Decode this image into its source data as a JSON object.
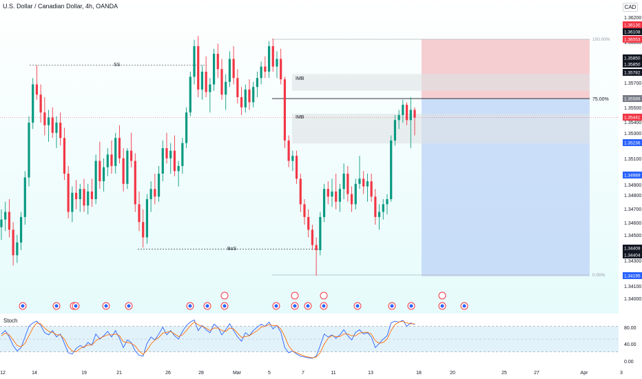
{
  "header": {
    "title": "U.S. Dollar / Canadian Dollar, 4h, OANDA",
    "currency_button": "CAD"
  },
  "colors": {
    "up": "#089981",
    "down": "#f23645",
    "bg_gradient": [
      "#ffffff",
      "#e6fbfb"
    ],
    "stop_zone": "#f2c2c6",
    "target_zone": "#bcd3f7",
    "imb_zone": "#dde3e4",
    "stoch_k": "#2962ff",
    "stoch_d": "#ff6d00"
  },
  "chart_data": [
    {
      "type": "candlestick",
      "title": "U.S. Dollar / Canadian Dollar, 4h, OANDA",
      "ylim": [
        1.3395,
        1.3625
      ],
      "price_scale": [
        "1.36200",
        "1.36000",
        "1.35850",
        "1.35700",
        "1.35500",
        "1.35400",
        "1.35300",
        "1.35100",
        "1.34900",
        "1.34800",
        "1.34700",
        "1.34600",
        "1.34500",
        "1.34300",
        "1.34100",
        "1.34000"
      ],
      "x_ticks": [
        "12",
        "14",
        "19",
        "21",
        "26",
        "28",
        "Mar",
        "5",
        "7",
        "11",
        "13",
        "18",
        "20",
        "25",
        "27",
        "Apr",
        "3"
      ],
      "price_tags": [
        {
          "value": "1.36130",
          "color": "#f23645"
        },
        {
          "value": "1.36108",
          "color": "#131722"
        },
        {
          "value": "1.36053",
          "color": "#f23645"
        },
        {
          "value": "1.35850",
          "color": "#131722"
        },
        {
          "value": "1.35850",
          "color": "#131722"
        },
        {
          "value": "1.35782",
          "color": "#131722"
        },
        {
          "value": "1.35589",
          "color": "#787b86"
        },
        {
          "value": "1.35441",
          "color": "#f23645"
        },
        {
          "value": "1.35236",
          "color": "#2962ff"
        },
        {
          "value": "1.34989",
          "color": "#2962ff"
        },
        {
          "value": "1.34409",
          "color": "#131722"
        },
        {
          "value": "1.34404",
          "color": "#131722"
        },
        {
          "value": "1.34195",
          "color": "#2962ff"
        }
      ],
      "annotations": {
        "ss_label": "SS",
        "bos_label": "BoS",
        "imb_upper": "IMB",
        "imb_lower": "IMB",
        "fib_top": "100.00%",
        "fib_entry": "75.00%",
        "fib_bottom": "0.00%"
      },
      "position": {
        "entry": 1.35589,
        "stop": 1.36,
        "target": 1.34195,
        "fib_high": 1.36,
        "fib_low": 1.34195
      },
      "imbalance_zones": [
        {
          "top": 1.35782,
          "bottom": 1.3565
        },
        {
          "top": 1.3547,
          "bottom": 1.35236
        }
      ],
      "structure_lines": {
        "ss_level": 1.3585,
        "bos_level": 1.34409
      },
      "current_price": 1.35441,
      "candles": [
        [
          1.3458,
          1.3472,
          1.3448,
          1.3464
        ],
        [
          1.3464,
          1.3478,
          1.3455,
          1.347
        ],
        [
          1.347,
          1.348,
          1.345,
          1.3456
        ],
        [
          1.3456,
          1.3462,
          1.3428,
          1.3436
        ],
        [
          1.3436,
          1.3452,
          1.343,
          1.3446
        ],
        [
          1.3446,
          1.347,
          1.344,
          1.3466
        ],
        [
          1.3466,
          1.3502,
          1.346,
          1.3497
        ],
        [
          1.3497,
          1.3545,
          1.349,
          1.354
        ],
        [
          1.354,
          1.3575,
          1.3535,
          1.357
        ],
        [
          1.357,
          1.3585,
          1.3558,
          1.3562
        ],
        [
          1.3562,
          1.357,
          1.354,
          1.3548
        ],
        [
          1.3548,
          1.356,
          1.353,
          1.3538
        ],
        [
          1.3538,
          1.355,
          1.3525,
          1.3544
        ],
        [
          1.3544,
          1.3552,
          1.3528,
          1.3532
        ],
        [
          1.3532,
          1.3545,
          1.352,
          1.354
        ],
        [
          1.354,
          1.3548,
          1.3522,
          1.3528
        ],
        [
          1.3528,
          1.3536,
          1.3495,
          1.35
        ],
        [
          1.35,
          1.3506,
          1.3465,
          1.347
        ],
        [
          1.347,
          1.349,
          1.3462,
          1.3485
        ],
        [
          1.3485,
          1.3495,
          1.3472,
          1.348
        ],
        [
          1.348,
          1.3492,
          1.347,
          1.3488
        ],
        [
          1.3488,
          1.3496,
          1.347,
          1.3475
        ],
        [
          1.3475,
          1.3492,
          1.3468,
          1.3486
        ],
        [
          1.3486,
          1.3496,
          1.3474,
          1.348
        ],
        [
          1.348,
          1.3515,
          1.3476,
          1.351
        ],
        [
          1.351,
          1.3525,
          1.3488,
          1.3494
        ],
        [
          1.3494,
          1.3512,
          1.3486,
          1.3505
        ],
        [
          1.3505,
          1.352,
          1.3498,
          1.3515
        ],
        [
          1.3515,
          1.3526,
          1.35,
          1.3506
        ],
        [
          1.3506,
          1.3532,
          1.35,
          1.3528
        ],
        [
          1.3528,
          1.3538,
          1.3508,
          1.3512
        ],
        [
          1.3512,
          1.352,
          1.3486,
          1.3492
        ],
        [
          1.3492,
          1.352,
          1.3488,
          1.3518
        ],
        [
          1.3518,
          1.3532,
          1.3505,
          1.351
        ],
        [
          1.351,
          1.3516,
          1.347,
          1.3476
        ],
        [
          1.3476,
          1.3486,
          1.3455,
          1.3462
        ],
        [
          1.3462,
          1.3472,
          1.3442,
          1.345
        ],
        [
          1.345,
          1.3484,
          1.3445,
          1.348
        ],
        [
          1.348,
          1.3494,
          1.347,
          1.3488
        ],
        [
          1.3488,
          1.35,
          1.3476,
          1.3482
        ],
        [
          1.3482,
          1.3506,
          1.3478,
          1.35
        ],
        [
          1.35,
          1.3526,
          1.3494,
          1.352
        ],
        [
          1.352,
          1.3532,
          1.3508,
          1.3512
        ],
        [
          1.3512,
          1.3524,
          1.35,
          1.3518
        ],
        [
          1.3518,
          1.353,
          1.3498,
          1.3502
        ],
        [
          1.3502,
          1.351,
          1.349,
          1.3506
        ],
        [
          1.3506,
          1.3528,
          1.35,
          1.3524
        ],
        [
          1.3524,
          1.3552,
          1.352,
          1.3548
        ],
        [
          1.3548,
          1.358,
          1.3545,
          1.3576
        ],
        [
          1.3576,
          1.3605,
          1.357,
          1.36
        ],
        [
          1.36,
          1.3608,
          1.356,
          1.3566
        ],
        [
          1.3566,
          1.3585,
          1.3558,
          1.358
        ],
        [
          1.358,
          1.3592,
          1.356,
          1.3564
        ],
        [
          1.3564,
          1.3575,
          1.3548,
          1.357
        ],
        [
          1.357,
          1.3598,
          1.3565,
          1.3594
        ],
        [
          1.3594,
          1.3602,
          1.3575,
          1.3582
        ],
        [
          1.3582,
          1.359,
          1.3558,
          1.3562
        ],
        [
          1.3562,
          1.3578,
          1.355,
          1.3572
        ],
        [
          1.3572,
          1.3596,
          1.3568,
          1.359
        ],
        [
          1.359,
          1.36,
          1.357,
          1.3575
        ],
        [
          1.3575,
          1.3582,
          1.3555,
          1.356
        ],
        [
          1.356,
          1.3568,
          1.3546,
          1.3552
        ],
        [
          1.3552,
          1.357,
          1.3548,
          1.3566
        ],
        [
          1.3566,
          1.3574,
          1.355,
          1.3556
        ],
        [
          1.3556,
          1.3572,
          1.3552,
          1.3568
        ],
        [
          1.3568,
          1.358,
          1.356,
          1.3575
        ],
        [
          1.3575,
          1.3588,
          1.357,
          1.3584
        ],
        [
          1.3584,
          1.3592,
          1.3575,
          1.358
        ],
        [
          1.358,
          1.3604,
          1.3575,
          1.36
        ],
        [
          1.36,
          1.3606,
          1.358,
          1.3584
        ],
        [
          1.3584,
          1.3596,
          1.3575,
          1.359
        ],
        [
          1.359,
          1.3598,
          1.357,
          1.3574
        ],
        [
          1.3574,
          1.3576,
          1.352,
          1.3526
        ],
        [
          1.3526,
          1.353,
          1.3505,
          1.351
        ],
        [
          1.351,
          1.3518,
          1.3502,
          1.3514
        ],
        [
          1.3514,
          1.3518,
          1.3492,
          1.3496
        ],
        [
          1.3496,
          1.35,
          1.347,
          1.3476
        ],
        [
          1.3476,
          1.348,
          1.346,
          1.3466
        ],
        [
          1.3466,
          1.3472,
          1.345,
          1.3456
        ],
        [
          1.3456,
          1.346,
          1.344,
          1.3444
        ],
        [
          1.3444,
          1.345,
          1.342,
          1.344
        ],
        [
          1.344,
          1.347,
          1.3436,
          1.3466
        ],
        [
          1.3466,
          1.3492,
          1.3462,
          1.3488
        ],
        [
          1.3488,
          1.3494,
          1.3476,
          1.3482
        ],
        [
          1.3482,
          1.3496,
          1.3474,
          1.3486
        ],
        [
          1.3486,
          1.35,
          1.3472,
          1.3478
        ],
        [
          1.3478,
          1.3492,
          1.347,
          1.3488
        ],
        [
          1.3488,
          1.3508,
          1.348,
          1.35
        ],
        [
          1.35,
          1.3506,
          1.3478,
          1.3484
        ],
        [
          1.3484,
          1.349,
          1.347,
          1.3476
        ],
        [
          1.3476,
          1.3496,
          1.3472,
          1.3492
        ],
        [
          1.3492,
          1.3514,
          1.3488,
          1.3496
        ],
        [
          1.3496,
          1.3502,
          1.3484,
          1.349
        ],
        [
          1.349,
          1.35,
          1.3478,
          1.3494
        ],
        [
          1.3494,
          1.35,
          1.3478,
          1.3482
        ],
        [
          1.3482,
          1.3488,
          1.346,
          1.3466
        ],
        [
          1.3466,
          1.3476,
          1.3456,
          1.347
        ],
        [
          1.347,
          1.348,
          1.3464,
          1.3476
        ],
        [
          1.3476,
          1.3484,
          1.3468,
          1.348
        ],
        [
          1.348,
          1.353,
          1.3478,
          1.3526
        ],
        [
          1.3526,
          1.3546,
          1.3522,
          1.3542
        ],
        [
          1.3542,
          1.355,
          1.3535,
          1.3546
        ],
        [
          1.3546,
          1.3558,
          1.354,
          1.3554
        ],
        [
          1.3554,
          1.3556,
          1.3538,
          1.3542
        ],
        [
          1.3542,
          1.356,
          1.352,
          1.355
        ],
        [
          1.355,
          1.3552,
          1.353,
          1.3544
        ]
      ]
    },
    {
      "type": "line",
      "title": "Stoch",
      "ylim": [
        0,
        100
      ],
      "y_ticks": [
        "80.00",
        "40.00",
        "0.00"
      ],
      "series": [
        {
          "name": "%K",
          "values": [
            62,
            70,
            55,
            35,
            22,
            30,
            55,
            80,
            88,
            92,
            82,
            65,
            60,
            70,
            55,
            62,
            40,
            18,
            15,
            28,
            35,
            30,
            42,
            36,
            62,
            50,
            58,
            68,
            55,
            70,
            52,
            30,
            48,
            42,
            22,
            12,
            10,
            40,
            55,
            48,
            62,
            78,
            60,
            70,
            58,
            50,
            68,
            82,
            90,
            95,
            70,
            82,
            72,
            65,
            85,
            78,
            60,
            72,
            86,
            70,
            55,
            45,
            65,
            58,
            70,
            78,
            85,
            80,
            90,
            74,
            82,
            66,
            30,
            18,
            22,
            15,
            10,
            8,
            6,
            5,
            10,
            35,
            62,
            55,
            60,
            52,
            60,
            72,
            58,
            48,
            66,
            72,
            62,
            65,
            55,
            30,
            40,
            50,
            58,
            88,
            92,
            90,
            94,
            80,
            88,
            84
          ]
        },
        {
          "name": "%D",
          "values": [
            58,
            64,
            60,
            48,
            35,
            32,
            40,
            58,
            76,
            88,
            86,
            76,
            68,
            66,
            60,
            60,
            50,
            32,
            22,
            20,
            28,
            32,
            36,
            36,
            46,
            52,
            56,
            60,
            60,
            62,
            58,
            44,
            42,
            40,
            34,
            22,
            14,
            24,
            38,
            48,
            54,
            64,
            66,
            68,
            62,
            56,
            60,
            70,
            82,
            90,
            84,
            80,
            76,
            70,
            76,
            76,
            70,
            68,
            76,
            74,
            64,
            54,
            56,
            58,
            64,
            70,
            78,
            80,
            84,
            82,
            82,
            74,
            56,
            34,
            22,
            18,
            14,
            10,
            8,
            6,
            8,
            18,
            38,
            52,
            58,
            56,
            56,
            62,
            62,
            58,
            58,
            64,
            66,
            66,
            62,
            46,
            40,
            42,
            50,
            70,
            84,
            90,
            92,
            88,
            86,
            86
          ]
        }
      ]
    }
  ]
}
